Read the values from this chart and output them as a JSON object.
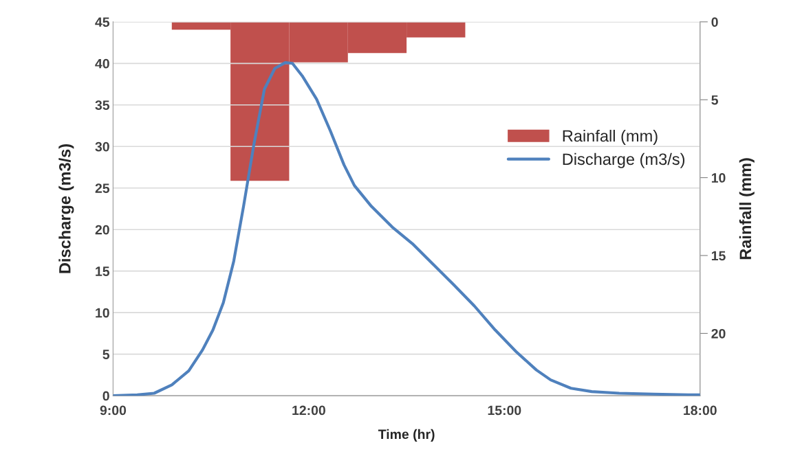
{
  "chart_data": {
    "type": "line",
    "xlabel": "Time (hr)",
    "ylabel": "Discharge (m3/s)",
    "y2label": "Rainfall (mm)",
    "xlim": [
      9,
      18
    ],
    "xticks": [
      {
        "value": 9,
        "label": "9:00"
      },
      {
        "value": 12,
        "label": "12:00"
      },
      {
        "value": 15,
        "label": "15:00"
      },
      {
        "value": 18,
        "label": "18:00"
      }
    ],
    "ylim": [
      0,
      45
    ],
    "yticks": [
      0,
      5,
      10,
      15,
      20,
      25,
      30,
      35,
      40,
      45
    ],
    "y2lim": [
      24,
      0
    ],
    "y2ticks": [
      0,
      5,
      10,
      15,
      20
    ],
    "grid": "y",
    "legend": "right",
    "series": [
      {
        "name": "Rainfall (mm)",
        "type": "bar",
        "axis": "y2",
        "color": "#c0504d",
        "x": [
          10.35,
          11.25,
          12.15,
          13.05,
          13.95
        ],
        "values": [
          0.5,
          10.2,
          2.6,
          2.0,
          1.0
        ]
      },
      {
        "name": "Discharge (m3/s)",
        "color": "#4f81bd",
        "x": [
          9.0,
          9.37,
          9.63,
          9.9,
          10.16,
          10.37,
          10.53,
          10.69,
          10.85,
          11.0,
          11.16,
          11.32,
          11.48,
          11.64,
          11.75,
          11.9,
          12.12,
          12.33,
          12.54,
          12.7,
          12.96,
          13.28,
          13.59,
          13.91,
          14.23,
          14.54,
          14.86,
          15.18,
          15.49,
          15.71,
          16.02,
          16.34,
          16.76,
          17.29,
          17.82,
          18.0
        ],
        "values": [
          0,
          0.1,
          0.3,
          1.3,
          3.0,
          5.5,
          7.9,
          11.2,
          16.2,
          22.8,
          30.3,
          36.9,
          39.4,
          40.1,
          40.0,
          38.5,
          35.7,
          31.9,
          27.8,
          25.3,
          22.8,
          20.3,
          18.3,
          15.8,
          13.3,
          10.8,
          7.9,
          5.3,
          3.1,
          1.9,
          0.9,
          0.5,
          0.3,
          0.2,
          0.1,
          0.1
        ]
      }
    ]
  }
}
